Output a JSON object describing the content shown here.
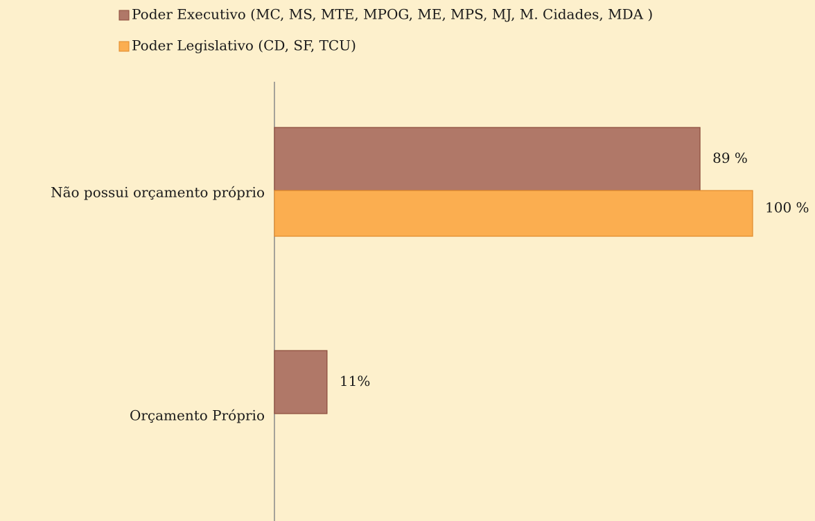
{
  "chart_data": {
    "type": "hbar",
    "categories": [
      "Não possui orçamento próprio",
      "Orçamento Próprio"
    ],
    "series": [
      {
        "name": "Poder Executivo (MC, MS, MTE, MPOG, ME, MPS, MJ, M. Cidades, MDA )",
        "color": "#b07868",
        "values": [
          89,
          11
        ],
        "value_labels": [
          "89 %",
          "11%"
        ]
      },
      {
        "name": "Poder Legislativo (CD, SF, TCU)",
        "color": "#fbae50",
        "values": [
          100,
          null
        ],
        "value_labels": [
          "100 %",
          null
        ]
      }
    ],
    "xlim": [
      0,
      100
    ],
    "legend": "top"
  }
}
